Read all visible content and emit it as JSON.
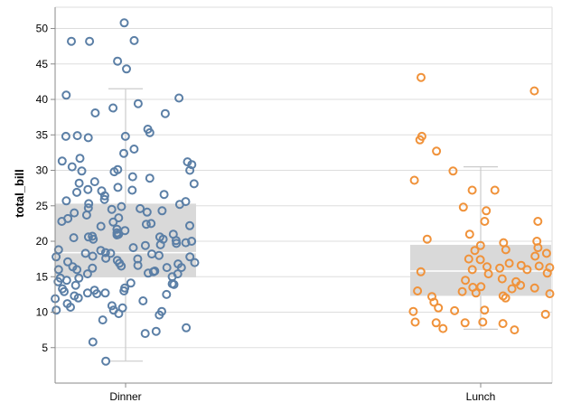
{
  "chart_data": {
    "type": "scatter",
    "subtype": "box-plot with jittered points",
    "title": "",
    "xlabel": "",
    "ylabel": "total_bill",
    "ylim": [
      0,
      53
    ],
    "y_ticks": [
      5,
      10,
      15,
      20,
      25,
      30,
      35,
      40,
      45,
      50
    ],
    "categories": [
      "Dinner",
      "Lunch"
    ],
    "grid": true,
    "colors": {
      "Dinner": "#5b7fa6",
      "Lunch": "#f0923a",
      "box": "#d9d9d9",
      "whisker": "#cccccc",
      "grid": "#dddddd",
      "axis": "#888888"
    },
    "boxes": [
      {
        "category": "Dinner",
        "min": 3.1,
        "q1": 14.9,
        "median": 18.4,
        "q3": 25.3,
        "max": 41.5
      },
      {
        "category": "Lunch",
        "min": 7.6,
        "q1": 12.3,
        "median": 15.8,
        "q3": 19.5,
        "max": 30.5
      }
    ],
    "series": [
      {
        "name": "Dinner",
        "values": [
          50.8,
          48.3,
          48.2,
          48.2,
          45.4,
          44.3,
          40.6,
          40.2,
          39.4,
          38.8,
          38.1,
          38.0,
          35.8,
          34.8,
          34.8,
          34.6,
          35.3,
          34.9,
          33.0,
          32.4,
          31.7,
          31.3,
          31.2,
          30.8,
          30.5,
          30.1,
          30.0,
          29.9,
          29.8,
          29.1,
          28.9,
          28.4,
          28.2,
          28.1,
          27.6,
          27.3,
          27.2,
          27.1,
          26.9,
          26.6,
          26.4,
          25.9,
          25.7,
          25.6,
          25.3,
          25.2,
          24.9,
          24.7,
          24.6,
          24.5,
          24.3,
          24.1,
          24.0,
          23.7,
          23.3,
          23.2,
          22.8,
          22.7,
          22.5,
          22.4,
          22.2,
          22.1,
          21.7,
          21.5,
          21.2,
          21.0,
          21.0,
          20.9,
          20.7,
          20.6,
          20.6,
          20.5,
          20.3,
          20.3,
          20.1,
          20.0,
          19.8,
          19.7,
          19.5,
          19.4,
          19.1,
          18.8,
          18.7,
          18.4,
          18.3,
          18.3,
          18.2,
          18.0,
          17.9,
          17.8,
          17.8,
          17.6,
          17.5,
          17.3,
          17.1,
          17.0,
          16.9,
          16.8,
          16.6,
          16.5,
          16.4,
          16.3,
          16.3,
          16.2,
          16.0,
          16.0,
          15.8,
          15.7,
          15.5,
          15.4,
          15.4,
          15.0,
          14.8,
          14.8,
          14.5,
          14.3,
          14.1,
          14.0,
          13.9,
          13.8,
          13.4,
          13.3,
          13.1,
          13.0,
          12.9,
          12.7,
          12.7,
          12.6,
          12.5,
          12.3,
          12.0,
          11.9,
          11.6,
          11.2,
          10.9,
          10.7,
          10.6,
          10.3,
          10.3,
          10.1,
          9.8,
          9.6,
          8.9,
          7.8,
          7.3,
          7.0,
          5.8,
          3.1
        ]
      },
      {
        "name": "Lunch",
        "values": [
          43.1,
          41.2,
          34.8,
          34.3,
          32.7,
          29.9,
          28.6,
          27.2,
          27.2,
          24.8,
          24.3,
          22.8,
          22.8,
          21.0,
          20.3,
          20.0,
          19.8,
          19.4,
          19.1,
          18.8,
          18.7,
          18.3,
          17.9,
          17.5,
          17.4,
          16.9,
          16.6,
          16.5,
          16.4,
          16.3,
          16.2,
          16.0,
          16.0,
          15.7,
          15.5,
          15.4,
          14.7,
          14.5,
          14.3,
          13.8,
          13.6,
          13.5,
          13.4,
          13.3,
          13.0,
          12.9,
          12.7,
          12.6,
          12.3,
          12.2,
          12.0,
          11.4,
          10.6,
          10.3,
          10.2,
          10.1,
          9.7,
          8.6,
          8.6,
          8.5,
          8.5,
          8.4,
          7.7,
          7.5
        ]
      }
    ]
  }
}
